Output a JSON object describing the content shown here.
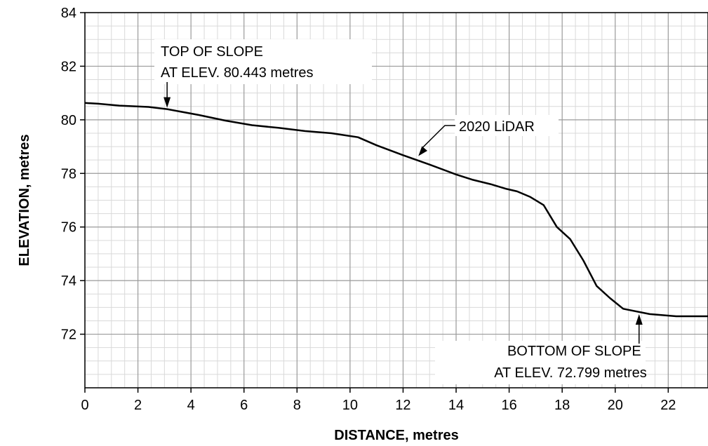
{
  "chart_data": {
    "type": "line",
    "title": "",
    "xlabel": "DISTANCE, metres",
    "ylabel": "ELEVATION, metres",
    "xlim": [
      0,
      23.5
    ],
    "ylim": [
      70,
      84
    ],
    "x_ticks": [
      0,
      2,
      4,
      6,
      8,
      10,
      12,
      14,
      16,
      18,
      20,
      22
    ],
    "y_ticks": [
      72,
      74,
      76,
      78,
      80,
      82,
      84
    ],
    "grid": true,
    "series": [
      {
        "name": "2020 LiDAR",
        "x": [
          0,
          0.5,
          1.3,
          2.4,
          3.1,
          4.3,
          5.3,
          6.3,
          7.3,
          8.3,
          9.3,
          10.3,
          11.0,
          12.0,
          13.0,
          14.0,
          14.6,
          15.3,
          15.9,
          16.3,
          16.8,
          17.3,
          17.8,
          18.3,
          18.8,
          19.3,
          19.8,
          20.3,
          21.3,
          22.3,
          23.5
        ],
        "y": [
          80.63,
          80.6,
          80.53,
          80.48,
          80.4,
          80.18,
          79.97,
          79.8,
          79.7,
          79.58,
          79.5,
          79.35,
          79.05,
          78.68,
          78.33,
          77.96,
          77.77,
          77.6,
          77.42,
          77.33,
          77.12,
          76.82,
          76.0,
          75.55,
          74.75,
          73.8,
          73.35,
          72.95,
          72.75,
          72.67,
          72.67
        ]
      }
    ]
  },
  "annotations": {
    "top_line1": "TOP OF SLOPE",
    "top_line2": "AT ELEV. 80.443 metres",
    "top_x": 3.1,
    "top_y": 80.4,
    "bottom_line1": "BOTTOM OF SLOPE",
    "bottom_line2": "AT ELEV. 72.799 metres",
    "bottom_x": 20.9,
    "bottom_y": 72.799,
    "series_label": "2020 LiDAR",
    "series_label_x": 12.55,
    "series_label_y": 78.57
  }
}
